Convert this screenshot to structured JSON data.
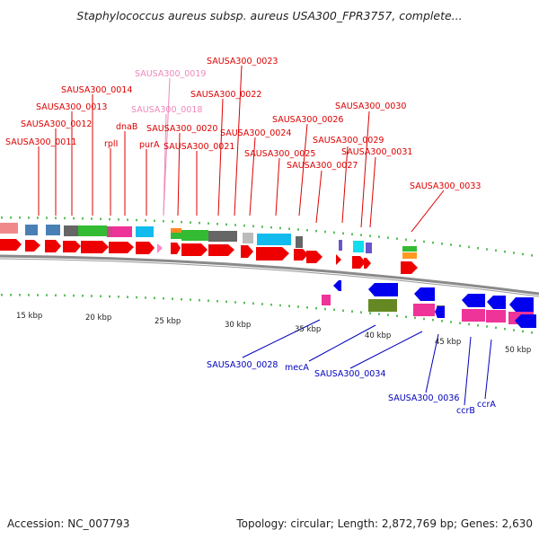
{
  "title": "Staphylococcus aureus subsp. aureus USA300_FPR3757, complete...",
  "footer": {
    "accession": "Accession: NC_007793",
    "summary": "Topology: circular; Length: 2,872,769 bp; Genes: 2,630"
  },
  "colors": {
    "forward_gene": "#ee0000",
    "reverse_gene": "#0000ee",
    "pseudo_gene": "#ff88cc",
    "backbone": "#888888",
    "tick": "#22aa22",
    "label_forward": "#dd0000",
    "label_reverse": "#0000bb",
    "label_pseudo": "#ee88bb"
  },
  "scale": {
    "tick_labels": [
      "15 kbp",
      "20 kbp",
      "25 kbp",
      "30 kbp",
      "35 kbp",
      "40 kbp",
      "45 kbp",
      "50 kbp"
    ]
  },
  "forward_labels": [
    {
      "text": "SAUSA300_0011",
      "pseudo": false
    },
    {
      "text": "SAUSA300_0012",
      "pseudo": false
    },
    {
      "text": "SAUSA300_0013",
      "pseudo": false
    },
    {
      "text": "SAUSA300_0014",
      "pseudo": false
    },
    {
      "text": "rplI",
      "pseudo": false
    },
    {
      "text": "dnaB",
      "pseudo": false
    },
    {
      "text": "purA",
      "pseudo": false
    },
    {
      "text": "SAUSA300_0019",
      "pseudo": true
    },
    {
      "text": "SAUSA300_0018",
      "pseudo": true
    },
    {
      "text": "SAUSA300_0020",
      "pseudo": false
    },
    {
      "text": "SAUSA300_0021",
      "pseudo": false
    },
    {
      "text": "SAUSA300_0022",
      "pseudo": false
    },
    {
      "text": "SAUSA300_0023",
      "pseudo": false
    },
    {
      "text": "SAUSA300_0024",
      "pseudo": false
    },
    {
      "text": "SAUSA300_0025",
      "pseudo": false
    },
    {
      "text": "SAUSA300_0026",
      "pseudo": false
    },
    {
      "text": "SAUSA300_0027",
      "pseudo": false
    },
    {
      "text": "SAUSA300_0029",
      "pseudo": false
    },
    {
      "text": "SAUSA300_0030",
      "pseudo": false
    },
    {
      "text": "SAUSA300_0031",
      "pseudo": false
    },
    {
      "text": "SAUSA300_0033",
      "pseudo": false
    }
  ],
  "reverse_labels": [
    {
      "text": "SAUSA300_0028"
    },
    {
      "text": "mecA"
    },
    {
      "text": "SAUSA300_0034"
    },
    {
      "text": "SAUSA300_0036"
    },
    {
      "text": "ccrB"
    },
    {
      "text": "ccrA"
    }
  ]
}
